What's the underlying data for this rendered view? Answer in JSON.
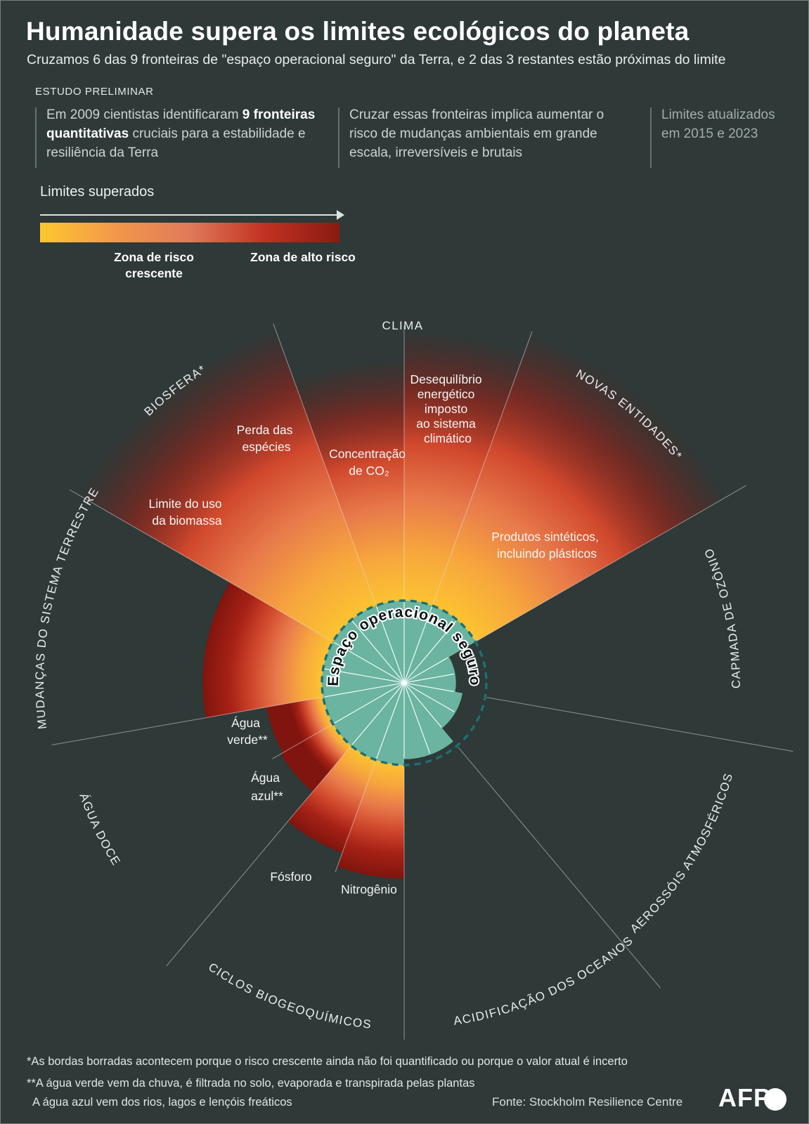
{
  "header": {
    "title": "Humanidade supera os limites ecológicos do planeta",
    "subtitle": "Cruzamos 6 das 9 fronteiras de \"espaço operacional seguro\" da Terra, e 2 das 3 restantes estão próximas do limite",
    "study_label": "ESTUDO PRELIMINAR",
    "col1_pre": "Em 2009 cientistas identificaram ",
    "col1_bold": "9 fronteiras quantitativas",
    "col1_post": " cruciais para a estabilidade e resiliência da Terra",
    "col2": "Cruzar essas fronteiras implica aumentar o risco de mudanças ambientais em grande escala, irreversíveis e brutais",
    "col3": "Limites atualizados em 2015 e 2023"
  },
  "legend": {
    "title": "Limites superados",
    "zone_increasing": "Zona de risco crescente",
    "zone_high": "Zona de alto risco",
    "gradient": [
      "#fdc72e",
      "#f2984b",
      "#e07a5a",
      "#c23122",
      "#8a1b12"
    ]
  },
  "chart": {
    "center_label": "Espaço operacional seguro",
    "sector_labels": {
      "clima": "CLIMA",
      "novas": "NOVAS ENTIDADES*",
      "ozonio": "CAPMADA DE OZÔNIO",
      "aerossois": "AEROSSÓIS ATMOSFÉRICOS",
      "oceanos": "ACIDIFICAÇÃO DOS OCEANOS",
      "ciclos": "CICLOS BIOGEOQUÍMICOS",
      "agua_doce": "ÁGUA DOCE",
      "terrestre": "MUDANÇAS DO SISTEMA TERRESTRE",
      "biosfera": "BIOSFERA*"
    },
    "metric_labels": {
      "deseq": [
        "Desequilíbrio",
        "energético",
        "imposto",
        "ao sistema",
        "climático"
      ],
      "co2": [
        "Concentração",
        "de CO₂"
      ],
      "perda": [
        "Perda das",
        "espécies"
      ],
      "biomassa": [
        "Limite do uso",
        "da biomassa"
      ],
      "produtos": [
        "Produtos sintéticos,",
        "incluindo plásticos"
      ],
      "verde": [
        "Água",
        "verde**"
      ],
      "azul": [
        "Água",
        "azul**"
      ],
      "fosforo": [
        "Fósforo"
      ],
      "nitrogenio": [
        "Nitrogênio"
      ]
    }
  },
  "chart_data": {
    "type": "radial-bar",
    "title": "Humanidade supera os limites ecológicos do planeta",
    "center_label": "Espaço operacional seguro",
    "units": "extent relative to the safe-operating-space boundary (dashed circle = 1.0); values > 1 mean the boundary is crossed",
    "legend": {
      "low": "Zona de risco crescente",
      "high": "Zona de alto risco"
    },
    "color_ramp": [
      [
        0,
        "#fcc331"
      ],
      [
        0.18,
        "#f7a73d"
      ],
      [
        0.38,
        "#e87a4b"
      ],
      [
        0.58,
        "#d0482d"
      ],
      [
        0.78,
        "#a62116"
      ],
      [
        1,
        "#7f150e"
      ]
    ],
    "inner_line_step": 20,
    "metrics": [
      {
        "id": "co2",
        "sector": "CLIMA",
        "label": "Concentração de CO₂",
        "a0": -20,
        "a1": 0,
        "value": 3.95,
        "crossed": true,
        "blurred": true
      },
      {
        "id": "desequilibrio",
        "sector": "CLIMA",
        "label": "Desequilíbrio energético imposto ao sistema climático",
        "a0": 0,
        "a1": 20,
        "value": 4.3,
        "crossed": true,
        "blurred": true
      },
      {
        "id": "novas-entidades",
        "sector": "NOVAS ENTIDADES*",
        "label": "Produtos sintéticos, incluindo plásticos",
        "a0": 20,
        "a1": 60,
        "value": 4.55,
        "crossed": true,
        "blurred": true
      },
      {
        "id": "ozonio",
        "sector": "CAPMADA DE OZÔNIO",
        "label": "Camada de ozônio",
        "a0": 60,
        "a1": 100,
        "value": 0.63,
        "crossed": false
      },
      {
        "id": "aerossois",
        "sector": "AEROSSÓIS ATMOSFÉRICOS",
        "label": "Aerossóis atmosféricos",
        "a0": 100,
        "a1": 140,
        "value": 0.72,
        "crossed": false
      },
      {
        "id": "oceanos",
        "sector": "ACIDIFICAÇÃO DOS OCEANOS",
        "label": "Acidificação dos oceanos",
        "a0": 140,
        "a1": 180,
        "value": 0.93,
        "crossed": false
      },
      {
        "id": "nitrogenio",
        "sector": "CICLOS BIOGEOQUÍMICOS",
        "label": "Nitrogênio",
        "a0": 180,
        "a1": 200,
        "value": 2.38,
        "crossed": true
      },
      {
        "id": "fosforo",
        "sector": "CICLOS BIOGEOQUÍMICOS",
        "label": "Fósforo",
        "a0": 200,
        "a1": 220,
        "value": 2.2,
        "crossed": true
      },
      {
        "id": "agua-azul",
        "sector": "ÁGUA DOCE",
        "label": "Água azul**",
        "a0": 220,
        "a1": 240,
        "value": 1.73,
        "crossed": true,
        "ramp_cap": 0.6
      },
      {
        "id": "agua-verde",
        "sector": "ÁGUA DOCE",
        "label": "Água verde**",
        "a0": 240,
        "a1": 260,
        "value": 1.7,
        "crossed": true,
        "ramp_cap": 0.6
      },
      {
        "id": "biomassa",
        "sector": "MUDANÇAS DO SISTEMA TERRESTRE",
        "label": "Limite do uso da biomassa",
        "a0": 260,
        "a1": 300,
        "value": 2.45,
        "crossed": true
      },
      {
        "id": "biosfera",
        "sector": "BIOSFERA*",
        "label": "Perda das espécies",
        "a0": 300,
        "a1": 340,
        "value": 4.6,
        "crossed": true,
        "blurred": true
      }
    ],
    "guides": [
      {
        "a": 0,
        "r": 4.35
      },
      {
        "a": 20,
        "r": 4.55
      },
      {
        "a": 60,
        "r": 4.8
      },
      {
        "a": 100,
        "r": 4.8
      },
      {
        "a": 140,
        "r": 4.85
      },
      {
        "a": 180,
        "r": 4.45
      },
      {
        "a": 200,
        "r": 2.45
      },
      {
        "a": 220,
        "r": 4.5
      },
      {
        "a": 240,
        "r": 1.85
      },
      {
        "a": 260,
        "r": 4.35
      },
      {
        "a": 300,
        "r": 4.7
      },
      {
        "a": 340,
        "r": 4.65
      }
    ]
  },
  "footer": {
    "note1": "*As bordas borradas acontecem porque o risco crescente ainda não foi quantificado ou porque o valor atual é incerto",
    "note2": "**A água verde vem da chuva, é filtrada no solo, evaporada e transpirada pelas plantas",
    "note3": "A água azul vem dos rios, lagos e lençóis freáticos",
    "source": "Fonte: Stockholm Resilience Centre",
    "brand": "AFP"
  },
  "colors": {
    "background": "#2e3938",
    "safe_zone": "#6ab4a1",
    "dashed_border": "#1a7176"
  }
}
